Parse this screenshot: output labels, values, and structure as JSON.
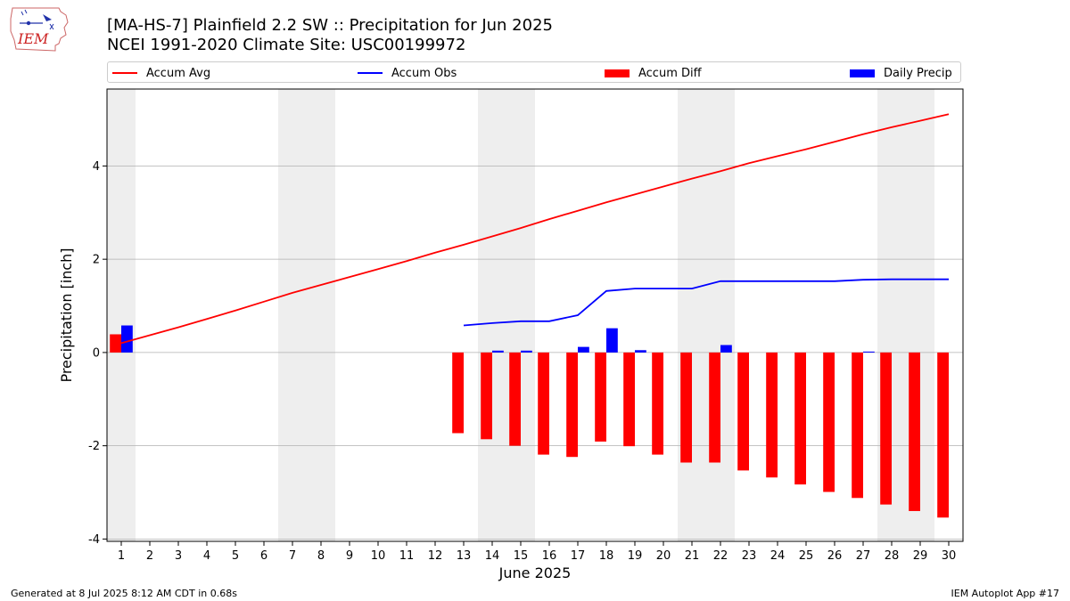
{
  "header": {
    "title_line1": "[MA-HS-7] Plainfield 2.2 SW :: Precipitation for Jun 2025",
    "title_line2": "NCEI 1991-2020 Climate Site: USC00199972",
    "logo_text": "IEM"
  },
  "legend": {
    "accum_avg": "Accum Avg",
    "accum_obs": "Accum Obs",
    "accum_diff": "Accum Diff",
    "daily_precip": "Daily Precip"
  },
  "footer": {
    "left": "Generated at 8 Jul 2025 8:12 AM CDT in 0.68s",
    "right": "IEM Autoplot App #17"
  },
  "colors": {
    "accum_avg": "#ff0000",
    "accum_obs": "#0000ff",
    "accum_diff": "#ff0000",
    "daily_precip": "#0000ff",
    "weekend_shade": "#eeeeee",
    "grid": "#b0b0b0"
  },
  "chart_data": {
    "type": "bar",
    "xlabel": "June 2025",
    "ylabel": "Precipitation [inch]",
    "ylim": [
      -4.05,
      5.65
    ],
    "yticks": [
      -4,
      -2,
      0,
      2,
      4
    ],
    "xlim": [
      0.5,
      30.5
    ],
    "grid": "horizontal",
    "legend_position": "top",
    "days": [
      1,
      2,
      3,
      4,
      5,
      6,
      7,
      8,
      9,
      10,
      11,
      12,
      13,
      14,
      15,
      16,
      17,
      18,
      19,
      20,
      21,
      22,
      23,
      24,
      25,
      26,
      27,
      28,
      29,
      30
    ],
    "weekend_days": [
      1,
      7,
      8,
      14,
      15,
      21,
      22,
      28,
      29
    ],
    "series": [
      {
        "name": "Accum Avg",
        "type": "line",
        "x": [
          1,
          2,
          3,
          4,
          5,
          6,
          7,
          8,
          9,
          10,
          11,
          12,
          13,
          14,
          15,
          16,
          17,
          18,
          19,
          20,
          21,
          22,
          23,
          24,
          25,
          26,
          27,
          28,
          29,
          30
        ],
        "values": [
          0.2,
          0.37,
          0.54,
          0.72,
          0.9,
          1.09,
          1.28,
          1.45,
          1.62,
          1.79,
          1.96,
          2.14,
          2.31,
          2.49,
          2.67,
          2.86,
          3.04,
          3.22,
          3.39,
          3.56,
          3.73,
          3.89,
          4.06,
          4.21,
          4.36,
          4.52,
          4.68,
          4.83,
          4.97,
          5.11
        ]
      },
      {
        "name": "Accum Obs",
        "type": "line",
        "x": [
          13,
          14,
          15,
          16,
          17,
          18,
          19,
          20,
          21,
          22,
          23,
          24,
          25,
          26,
          27,
          28,
          29,
          30
        ],
        "values": [
          0.58,
          0.63,
          0.67,
          0.67,
          0.8,
          1.32,
          1.37,
          1.37,
          1.37,
          1.53,
          1.53,
          1.53,
          1.53,
          1.53,
          1.56,
          1.57,
          1.57,
          1.57
        ]
      },
      {
        "name": "Accum Diff",
        "type": "bar",
        "x": [
          1,
          13,
          14,
          15,
          16,
          17,
          18,
          19,
          20,
          21,
          22,
          23,
          24,
          25,
          26,
          27,
          28,
          29,
          30
        ],
        "values": [
          0.39,
          -1.73,
          -1.86,
          -2.0,
          -2.19,
          -2.24,
          -1.91,
          -2.01,
          -2.19,
          -2.36,
          -2.36,
          -2.53,
          -2.68,
          -2.83,
          -2.99,
          -3.12,
          -3.26,
          -3.4,
          -3.54
        ]
      },
      {
        "name": "Daily Precip",
        "type": "bar",
        "x": [
          1,
          14,
          15,
          17,
          18,
          19,
          22,
          27
        ],
        "values": [
          0.58,
          0.04,
          0.04,
          0.12,
          0.52,
          0.05,
          0.16,
          0.02
        ]
      }
    ]
  }
}
